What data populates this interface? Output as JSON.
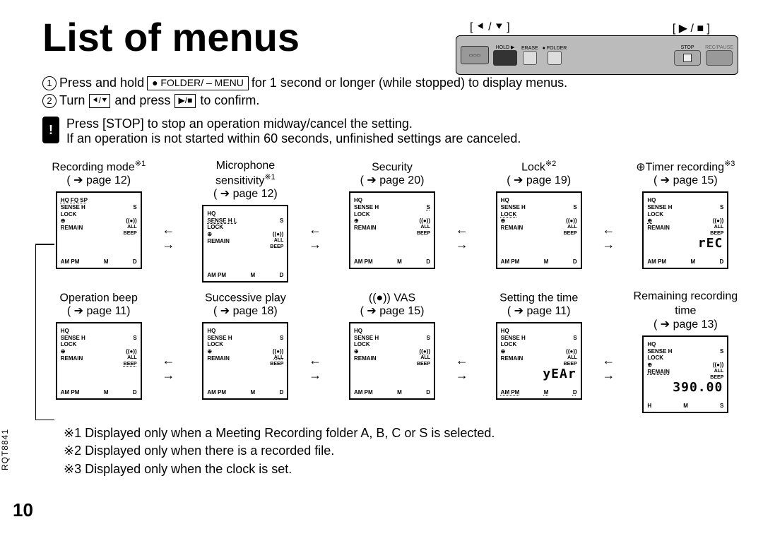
{
  "page": {
    "title": "List of menus",
    "page_number": "10",
    "doc_code": "RQT8841"
  },
  "device": {
    "left_marker": "[ ⯇ / ⯆ ]",
    "right_marker": "[ ▶ / ■ ]",
    "hold": "HOLD ▶",
    "erase": "ERASE",
    "folder": "● FOLDER",
    "stop": "STOP",
    "recpause": "REC/PAUSE"
  },
  "instructions": {
    "num1": "1",
    "num2": "2",
    "line1a": "Press and hold",
    "key1": "● FOLDER/ – MENU",
    "line1b": "for 1 second or longer (while stopped) to display menus.",
    "line2a": "Turn",
    "line2b": "and press",
    "line2c": "to confirm."
  },
  "notice": {
    "badge": "!",
    "line1": "Press [STOP] to stop an operation midway/cancel the setting.",
    "line2": "If an operation is not started within 60 seconds, unfinished settings are canceled."
  },
  "menu_rows": [
    [
      {
        "label": "Recording mode",
        "sup": "※1",
        "page": "page 12",
        "lcd": {
          "l1": "HQ FQ SP",
          "l1h": true,
          "l2": "SENSE H",
          "l2r": "S",
          "l3": "LOCK",
          "l4": "⊕",
          "l4r": "((●))",
          "l5": "REMAIN",
          "l5r": "ALL",
          "l6": "",
          "l6r": "BEEP",
          "big": "",
          "bottom": [
            "AM PM",
            "M",
            "D"
          ]
        }
      },
      {
        "label": "Microphone sensitivity",
        "sup": "※1",
        "page": "page 12",
        "lcd": {
          "l1": "HQ",
          "l2": "SENSE H L",
          "l2h": true,
          "l2r": "S",
          "l3": "LOCK",
          "l4": "⊕",
          "l4r": "((●))",
          "l5": "REMAIN",
          "l5r": "ALL",
          "l6": "",
          "l6r": "BEEP",
          "big": "",
          "bottom": [
            "AM PM",
            "M",
            "D"
          ]
        }
      },
      {
        "label": "Security",
        "sup": "",
        "page": "page 20",
        "lcd": {
          "l1": "HQ",
          "l2": "SENSE H",
          "l2r": "S",
          "l2rh": true,
          "l3": "LOCK",
          "l4": "⊕",
          "l4r": "((●))",
          "l5": "REMAIN",
          "l5r": "ALL",
          "l6": "",
          "l6r": "BEEP",
          "big": "",
          "bottom": [
            "AM PM",
            "M",
            "D"
          ]
        }
      },
      {
        "label": "Lock",
        "sup": "※2",
        "page": "page 19",
        "lcd": {
          "l1": "HQ",
          "l2": "SENSE H",
          "l2r": "S",
          "l3": "LOCK",
          "l3h": true,
          "l4": "⊕",
          "l4r": "((●))",
          "l5": "REMAIN",
          "l5r": "ALL",
          "l6": "",
          "l6r": "BEEP",
          "big": "",
          "bottom": [
            "AM PM",
            "M",
            "D"
          ]
        }
      },
      {
        "label": "⊕Timer recording",
        "sup": "※3",
        "page": "page 15",
        "lcd": {
          "l1": "HQ",
          "l2": "SENSE H",
          "l2r": "S",
          "l3": "LOCK",
          "l4": "⊕",
          "l4h": true,
          "l4r": "((●))",
          "l5": "REMAIN",
          "l5r": "ALL",
          "l6": "",
          "l6r": "BEEP",
          "big": "rEC",
          "bottom": [
            "AM PM",
            "M",
            "D"
          ]
        }
      }
    ],
    [
      {
        "label": "Operation beep",
        "sup": "",
        "page": "page 11",
        "lcd": {
          "l1": "HQ",
          "l2": "SENSE H",
          "l2r": "S",
          "l3": "LOCK",
          "l4": "⊕",
          "l4r": "((●))",
          "l5": "REMAIN",
          "l5r": "ALL",
          "l6": "",
          "l6r": "BEEP",
          "l6rh": true,
          "big": "",
          "bottom": [
            "AM PM",
            "M",
            "D"
          ]
        }
      },
      {
        "label": "Successive play",
        "sup": "",
        "page": "page 18",
        "lcd": {
          "l1": "HQ",
          "l2": "SENSE H",
          "l2r": "S",
          "l3": "LOCK",
          "l4": "⊕",
          "l4r": "((●))",
          "l5": "REMAIN",
          "l5r": "ALL",
          "l5rh": true,
          "l6": "",
          "l6r": "BEEP",
          "big": "",
          "bottom": [
            "AM PM",
            "M",
            "D"
          ]
        }
      },
      {
        "label": "((●)) VAS",
        "sup": "",
        "page": "page 15",
        "lcd": {
          "l1": "HQ",
          "l2": "SENSE H",
          "l2r": "S",
          "l3": "LOCK",
          "l4": "⊕",
          "l4r": "((●))",
          "l4rh": true,
          "l5": "REMAIN",
          "l5r": "ALL",
          "l6": "",
          "l6r": "BEEP",
          "big": "",
          "bottom": [
            "AM PM",
            "M",
            "D"
          ]
        }
      },
      {
        "label": "Setting the time",
        "sup": "",
        "page": "page 11",
        "lcd": {
          "l1": "HQ",
          "l2": "SENSE H",
          "l2r": "S",
          "l3": "LOCK",
          "l4": "⊕",
          "l4r": "((●))",
          "l5": "REMAIN",
          "l5r": "ALL",
          "l6": "",
          "l6r": "BEEP",
          "big": "yEAr",
          "bottom": [
            "AM PM",
            "M",
            "D"
          ],
          "bottomh": true
        }
      },
      {
        "label": "Remaining recording time",
        "sup": "",
        "page": "page 13",
        "lcd": {
          "l1": "HQ",
          "l2": "SENSE H",
          "l2r": "S",
          "l3": "LOCK",
          "l4": "⊕",
          "l4r": "((●))",
          "l5": "REMAIN",
          "l5h": true,
          "l5r": "ALL",
          "l6": "",
          "l6r": "BEEP",
          "big": "390.00",
          "bottom": [
            "H",
            "M",
            "S"
          ]
        }
      }
    ]
  ],
  "footnotes": {
    "f1": "※1 Displayed only when a Meeting Recording folder A, B, C or S is selected.",
    "f2": "※2 Displayed only when there is a recorded file.",
    "f3": "※3 Displayed only when the clock is set."
  }
}
